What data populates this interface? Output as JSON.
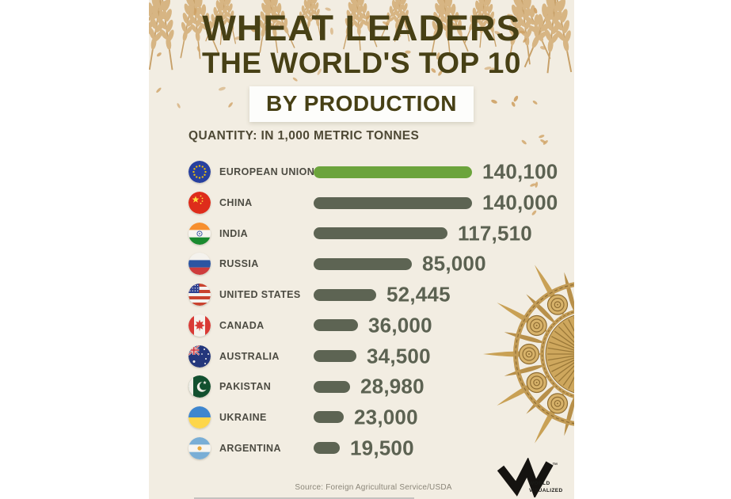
{
  "chart_data": {
    "type": "bar",
    "orientation": "horizontal",
    "title": "WHEAT LEADERS",
    "subtitle": "THE WORLD'S TOP 10",
    "badge": "BY PRODUCTION",
    "unit_note": "QUANTITY: IN 1,000 METRIC TONNES",
    "xlim": [
      0,
      140100
    ],
    "grid": false,
    "legend": "none",
    "bar_color": "#5D6453",
    "highlight_color": "#6CA43C",
    "highlight_category": "EUROPEAN UNION",
    "categories": [
      "EUROPEAN UNION",
      "CHINA",
      "INDIA",
      "RUSSIA",
      "UNITED STATES",
      "CANADA",
      "AUSTRALIA",
      "PAKISTAN",
      "UKRAINE",
      "ARGENTINA"
    ],
    "values": [
      140100,
      140000,
      117510,
      85000,
      52445,
      36000,
      34500,
      28980,
      23000,
      19500
    ],
    "value_labels": [
      "140,100",
      "140,000",
      "117,510",
      "85,000",
      "52,445",
      "36,000",
      "34,500",
      "28,980",
      "23,000",
      "19,500"
    ],
    "flags": [
      "eu",
      "china",
      "india",
      "russia",
      "usa",
      "canada",
      "australia",
      "pakistan",
      "ukraine",
      "argentina"
    ]
  },
  "footer": {
    "source": "Source: Foreign Agricultural Service/USDA",
    "brand_line1": "WORLD",
    "brand_line2": "VISUALIZED",
    "trademark": "™"
  },
  "colors": {
    "panel_bg": "#F2EDE2",
    "title_olive": "#474015",
    "country_label": "#4C4B42",
    "value_text": "#5C6252",
    "wheat_gold": "#C9A155",
    "wheat_light": "#D9B77F",
    "source_gray": "#8B8679"
  }
}
